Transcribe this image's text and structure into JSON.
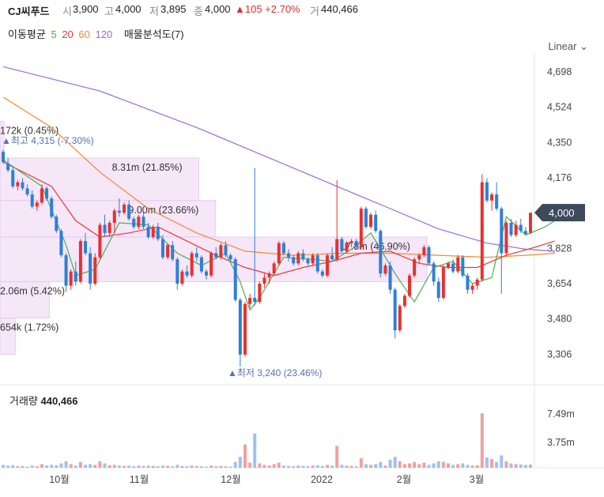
{
  "header": {
    "name": "CJ씨푸드",
    "open_label": "시",
    "open": "3,900",
    "high_label": "고",
    "high": "4,000",
    "low_label": "저",
    "low": "3,895",
    "close_label": "종",
    "close": "4,000",
    "change": "▲105 +2.70%",
    "volume_label": "거",
    "volume": "440,466"
  },
  "ma_legend": {
    "label": "이동평균",
    "periods": [
      {
        "value": "5",
        "color": "#4caf50"
      },
      {
        "value": "20",
        "color": "#e53935"
      },
      {
        "value": "60",
        "color": "#ef8c2c"
      },
      {
        "value": "120",
        "color": "#9c6bd6"
      }
    ],
    "volume_profile": "매물분석도(7)"
  },
  "scale_mode": "Linear",
  "chart_data": {
    "type": "candlestick",
    "x_ticks": [
      "10월",
      "11월",
      "12월",
      "2022",
      "2월",
      "3월"
    ],
    "y_ticks": [
      4698,
      4524,
      4350,
      4176,
      3828,
      3654,
      3480,
      3306
    ],
    "ylim": [
      3194,
      4784
    ],
    "current_price": "4,000",
    "up_color": "#e83030",
    "down_color": "#2d7fd8",
    "ohlc": [
      [
        4300,
        4310,
        4240,
        4250
      ],
      [
        4240,
        4270,
        4200,
        4210
      ],
      [
        4210,
        4230,
        4120,
        4130
      ],
      [
        4130,
        4160,
        4110,
        4150
      ],
      [
        4150,
        4170,
        4110,
        4120
      ],
      [
        4120,
        4140,
        4080,
        4090
      ],
      [
        4090,
        4110,
        4020,
        4030
      ],
      [
        4030,
        4060,
        4010,
        4050
      ],
      [
        4050,
        4140,
        4040,
        4120
      ],
      [
        4120,
        4130,
        4060,
        4070
      ],
      [
        4070,
        4080,
        3970,
        3980
      ],
      [
        3980,
        3990,
        3900,
        3910
      ],
      [
        3910,
        3920,
        3780,
        3790
      ],
      [
        3790,
        3800,
        3610,
        3640
      ],
      [
        3640,
        3720,
        3620,
        3710
      ],
      [
        3710,
        3760,
        3640,
        3660
      ],
      [
        3660,
        3870,
        3650,
        3860
      ],
      [
        3860,
        3900,
        3790,
        3800
      ],
      [
        3800,
        3830,
        3620,
        3650
      ],
      [
        3650,
        3800,
        3640,
        3780
      ],
      [
        3780,
        3950,
        3770,
        3940
      ],
      [
        3940,
        3990,
        3880,
        3900
      ],
      [
        3900,
        3960,
        3880,
        3950
      ],
      [
        3950,
        4020,
        3900,
        4010
      ],
      [
        4010,
        4070,
        3980,
        4000
      ],
      [
        4000,
        4050,
        3990,
        4040
      ],
      [
        4040,
        4060,
        3960,
        3970
      ],
      [
        3970,
        3980,
        3920,
        3930
      ],
      [
        3930,
        3990,
        3920,
        3980
      ],
      [
        3980,
        4000,
        3920,
        3930
      ],
      [
        3930,
        3950,
        3870,
        3880
      ],
      [
        3880,
        3940,
        3870,
        3930
      ],
      [
        3930,
        3950,
        3860,
        3870
      ],
      [
        3870,
        3890,
        3770,
        3780
      ],
      [
        3780,
        3850,
        3770,
        3840
      ],
      [
        3840,
        3860,
        3760,
        3770
      ],
      [
        3770,
        3780,
        3620,
        3650
      ],
      [
        3650,
        3720,
        3640,
        3710
      ],
      [
        3710,
        3740,
        3680,
        3690
      ],
      [
        3690,
        3810,
        3680,
        3800
      ],
      [
        3800,
        3830,
        3760,
        3780
      ],
      [
        3780,
        3790,
        3700,
        3710
      ],
      [
        3710,
        3720,
        3670,
        3690
      ],
      [
        3690,
        3810,
        3680,
        3800
      ],
      [
        3800,
        3830,
        3770,
        3780
      ],
      [
        3780,
        3850,
        3770,
        3840
      ],
      [
        3840,
        3860,
        3780,
        3790
      ],
      [
        3790,
        3800,
        3760,
        3770
      ],
      [
        3770,
        3780,
        3560,
        3570
      ],
      [
        3570,
        3580,
        3240,
        3300
      ],
      [
        3300,
        3560,
        3290,
        3550
      ],
      [
        3550,
        3600,
        3530,
        3580
      ],
      [
        3580,
        4220,
        3540,
        3560
      ],
      [
        3560,
        3660,
        3550,
        3650
      ],
      [
        3650,
        3700,
        3630,
        3680
      ],
      [
        3680,
        3710,
        3650,
        3700
      ],
      [
        3700,
        3760,
        3690,
        3750
      ],
      [
        3750,
        3860,
        3740,
        3850
      ],
      [
        3850,
        3860,
        3790,
        3800
      ],
      [
        3800,
        3820,
        3760,
        3780
      ],
      [
        3780,
        3790,
        3740,
        3750
      ],
      [
        3750,
        3810,
        3740,
        3800
      ],
      [
        3800,
        3820,
        3760,
        3770
      ],
      [
        3770,
        3780,
        3740,
        3750
      ],
      [
        3750,
        3800,
        3740,
        3790
      ],
      [
        3790,
        3800,
        3700,
        3710
      ],
      [
        3710,
        3720,
        3680,
        3690
      ],
      [
        3690,
        3800,
        3680,
        3790
      ],
      [
        3790,
        3830,
        3760,
        3770
      ],
      [
        3770,
        4160,
        3760,
        3870
      ],
      [
        3870,
        3880,
        3800,
        3810
      ],
      [
        3810,
        3860,
        3800,
        3850
      ],
      [
        3850,
        3870,
        3830,
        3860
      ],
      [
        3860,
        3870,
        3820,
        3830
      ],
      [
        3830,
        4030,
        3820,
        4020
      ],
      [
        4020,
        4030,
        3920,
        3930
      ],
      [
        3930,
        4000,
        3920,
        3990
      ],
      [
        3990,
        4010,
        3900,
        3910
      ],
      [
        3910,
        3920,
        3680,
        3700
      ],
      [
        3700,
        3750,
        3690,
        3740
      ],
      [
        3740,
        3760,
        3600,
        3620
      ],
      [
        3620,
        3630,
        3380,
        3420
      ],
      [
        3420,
        3550,
        3410,
        3540
      ],
      [
        3540,
        3600,
        3530,
        3590
      ],
      [
        3590,
        3700,
        3580,
        3690
      ],
      [
        3690,
        3780,
        3680,
        3770
      ],
      [
        3770,
        3800,
        3750,
        3790
      ],
      [
        3790,
        3840,
        3780,
        3830
      ],
      [
        3830,
        3840,
        3740,
        3750
      ],
      [
        3750,
        3760,
        3640,
        3660
      ],
      [
        3660,
        3680,
        3560,
        3580
      ],
      [
        3580,
        3740,
        3570,
        3730
      ],
      [
        3730,
        3760,
        3720,
        3750
      ],
      [
        3750,
        3770,
        3700,
        3710
      ],
      [
        3710,
        3790,
        3700,
        3780
      ],
      [
        3780,
        3790,
        3680,
        3690
      ],
      [
        3690,
        3700,
        3600,
        3620
      ],
      [
        3620,
        3650,
        3600,
        3640
      ],
      [
        3640,
        3680,
        3620,
        3670
      ],
      [
        3670,
        4190,
        3660,
        4150
      ],
      [
        4150,
        4170,
        4050,
        4060
      ],
      [
        4060,
        4100,
        4010,
        4090
      ],
      [
        4090,
        4150,
        4010,
        4020
      ],
      [
        4020,
        4030,
        3600,
        3800
      ],
      [
        3800,
        3960,
        3790,
        3950
      ],
      [
        3950,
        3970,
        3880,
        3890
      ],
      [
        3890,
        3960,
        3880,
        3940
      ],
      [
        3940,
        3970,
        3900,
        3910
      ],
      [
        3910,
        3930,
        3890,
        3895
      ],
      [
        3900,
        4000,
        3895,
        4000
      ]
    ],
    "ma_lines": {
      "ma5": [
        [
          0,
          4260
        ],
        [
          8,
          4130
        ],
        [
          13,
          3840
        ],
        [
          15,
          3690
        ],
        [
          19,
          3720
        ],
        [
          24,
          3950
        ],
        [
          30,
          3940
        ],
        [
          36,
          3800
        ],
        [
          41,
          3740
        ],
        [
          46,
          3800
        ],
        [
          49,
          3660
        ],
        [
          51,
          3520
        ],
        [
          53,
          3580
        ],
        [
          58,
          3780
        ],
        [
          64,
          3770
        ],
        [
          68,
          3760
        ],
        [
          72,
          3820
        ],
        [
          76,
          3900
        ],
        [
          81,
          3700
        ],
        [
          85,
          3560
        ],
        [
          89,
          3730
        ],
        [
          93,
          3760
        ],
        [
          97,
          3650
        ],
        [
          101,
          3680
        ],
        [
          104,
          3980
        ],
        [
          108,
          3890
        ],
        [
          112,
          3930
        ],
        [
          114,
          3960
        ]
      ],
      "ma20": [
        [
          0,
          4250
        ],
        [
          10,
          4130
        ],
        [
          15,
          3960
        ],
        [
          20,
          3880
        ],
        [
          26,
          3900
        ],
        [
          32,
          3930
        ],
        [
          38,
          3860
        ],
        [
          44,
          3790
        ],
        [
          50,
          3730
        ],
        [
          56,
          3690
        ],
        [
          62,
          3730
        ],
        [
          68,
          3760
        ],
        [
          74,
          3800
        ],
        [
          80,
          3810
        ],
        [
          86,
          3750
        ],
        [
          92,
          3730
        ],
        [
          98,
          3730
        ],
        [
          104,
          3790
        ],
        [
          110,
          3830
        ],
        [
          114,
          3860
        ]
      ],
      "ma60": [
        [
          0,
          4570
        ],
        [
          10,
          4420
        ],
        [
          20,
          4200
        ],
        [
          30,
          4020
        ],
        [
          40,
          3900
        ],
        [
          50,
          3810
        ],
        [
          60,
          3790
        ],
        [
          70,
          3800
        ],
        [
          80,
          3800
        ],
        [
          90,
          3790
        ],
        [
          100,
          3780
        ],
        [
          108,
          3790
        ],
        [
          114,
          3800
        ]
      ],
      "ma120": [
        [
          0,
          4720
        ],
        [
          10,
          4660
        ],
        [
          20,
          4600
        ],
        [
          30,
          4510
        ],
        [
          40,
          4420
        ],
        [
          50,
          4320
        ],
        [
          60,
          4220
        ],
        [
          70,
          4120
        ],
        [
          80,
          4020
        ],
        [
          90,
          3920
        ],
        [
          100,
          3850
        ],
        [
          108,
          3820
        ],
        [
          114,
          3810
        ]
      ]
    },
    "volume_profile": [
      {
        "low": 4060,
        "high": 4270,
        "label": "8.31m (21.85%)",
        "share": 21.85
      },
      {
        "low": 3880,
        "high": 4060,
        "label": "9.00m (23.66%)",
        "share": 23.66
      },
      {
        "low": 3660,
        "high": 3880,
        "label": "17.8m (46.90%)",
        "share": 46.9
      },
      {
        "low": 3480,
        "high": 3660,
        "label": "2.06m (5.42%)",
        "share": 5.42
      },
      {
        "low": 3300,
        "high": 3480,
        "label": "654k (1.72%)",
        "share": 1.72
      },
      {
        "low": 4270,
        "high": 4450,
        "label": "172k (0.45%)",
        "share": 0.45
      }
    ],
    "annotations": {
      "high_marker": "▲최고 4,315 (-7.30%)",
      "low_marker": "▲최저 3,240 (23.46%)"
    },
    "volume": {
      "label": "거래량",
      "value": "440,466",
      "y_ticks": [
        "7.49m",
        "3.75m"
      ],
      "max_tick": 7490000,
      "values": [
        400000,
        300000,
        350000,
        200000,
        250000,
        150000,
        300000,
        200000,
        500000,
        300000,
        400000,
        350000,
        600000,
        900000,
        500000,
        300000,
        800000,
        400000,
        500000,
        400000,
        900000,
        600000,
        350000,
        400000,
        300000,
        250000,
        300000,
        200000,
        300000,
        250000,
        300000,
        250000,
        200000,
        300000,
        250000,
        200000,
        400000,
        250000,
        200000,
        300000,
        250000,
        200000,
        150000,
        300000,
        200000,
        250000,
        200000,
        150000,
        800000,
        1500000,
        3200000,
        700000,
        4700000,
        600000,
        400000,
        300000,
        500000,
        700000,
        300000,
        250000,
        200000,
        300000,
        250000,
        200000,
        300000,
        350000,
        250000,
        400000,
        300000,
        3000000,
        400000,
        300000,
        250000,
        200000,
        1300000,
        500000,
        400000,
        500000,
        800000,
        300000,
        1100000,
        1500000,
        900000,
        500000,
        600000,
        800000,
        500000,
        700000,
        400000,
        600000,
        900000,
        800000,
        600000,
        400000,
        500000,
        600000,
        400000,
        300000,
        350000,
        7490000,
        1400000,
        1200000,
        800000,
        1700000,
        900000,
        600000,
        500000,
        450000,
        400000,
        440466
      ]
    }
  }
}
